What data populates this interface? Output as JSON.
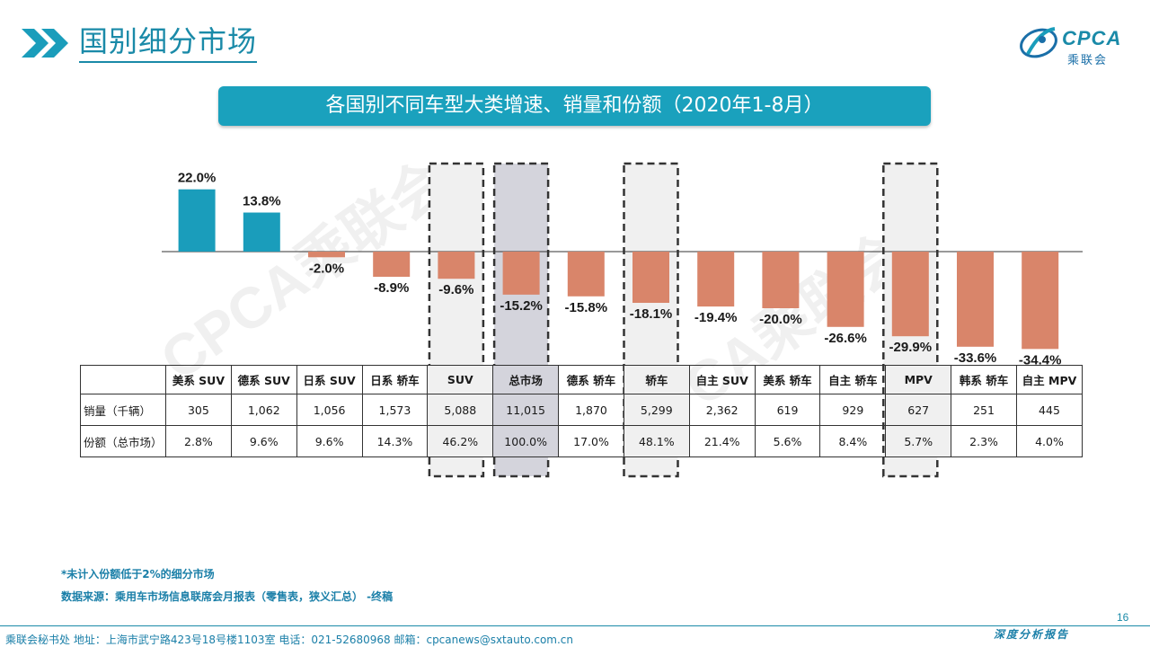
{
  "header": {
    "title": "国别细分市场",
    "logo_text": "CPCA",
    "logo_sub": "乘联会"
  },
  "banner": {
    "title": "各国别不同车型大类增速、销量和份额（2020年1-8月）"
  },
  "watermark": "CPCA乘联会",
  "colors": {
    "positive": "#1a9dbb",
    "negative": "#d9856a",
    "accent": "#1a8aa8"
  },
  "chart_data": {
    "type": "bar",
    "categories": [
      "美系 SUV",
      "德系 SUV",
      "日系 SUV",
      "日系 轿车",
      "SUV",
      "总市场",
      "德系 轿车",
      "轿车",
      "自主 SUV",
      "美系 轿车",
      "自主 轿车",
      "MPV",
      "韩系 轿车",
      "自主 MPV"
    ],
    "series": [
      {
        "values": [
          22.0,
          13.8,
          -2.0,
          -8.9,
          -9.6,
          -15.2,
          -15.8,
          -18.1,
          -19.4,
          -20.0,
          -26.6,
          -29.9,
          -33.6,
          -34.4
        ]
      }
    ],
    "data_labels": [
      "22.0%",
      "13.8%",
      "-2.0%",
      "-8.9%",
      "-9.6%",
      "-15.2%",
      "-15.8%",
      "-18.1%",
      "-19.4%",
      "-20.0%",
      "-26.6%",
      "-29.9%",
      "-33.6%",
      "-34.4%"
    ],
    "highlighted": [
      "SUV",
      "总市场",
      "轿车",
      "MPV"
    ],
    "ylim": [
      -36,
      24
    ],
    "grid": false,
    "legend": "none"
  },
  "table": {
    "rows": [
      {
        "label": "销量（千辆）",
        "values": [
          "305",
          "1,062",
          "1,056",
          "1,573",
          "5,088",
          "11,015",
          "1,870",
          "5,299",
          "2,362",
          "619",
          "929",
          "627",
          "251",
          "445"
        ]
      },
      {
        "label": "份额（总市场）",
        "values": [
          "2.8%",
          "9.6%",
          "9.6%",
          "14.3%",
          "46.2%",
          "100.0%",
          "17.0%",
          "48.1%",
          "21.4%",
          "5.6%",
          "8.4%",
          "5.7%",
          "2.3%",
          "4.0%"
        ]
      }
    ]
  },
  "footnotes": {
    "note": "*未计入份额低于2%的细分市场",
    "source": "数据来源：乘用车市场信息联席会月报表（零售表，狭义汇总） -终稿"
  },
  "footer": {
    "address": "乘联会秘书处   地址：上海市武宁路423号18号楼1103室  电话：021-52680968   邮箱：cpcanews@sxtauto.com.cn",
    "report": "深度分析报告",
    "page": "16"
  }
}
